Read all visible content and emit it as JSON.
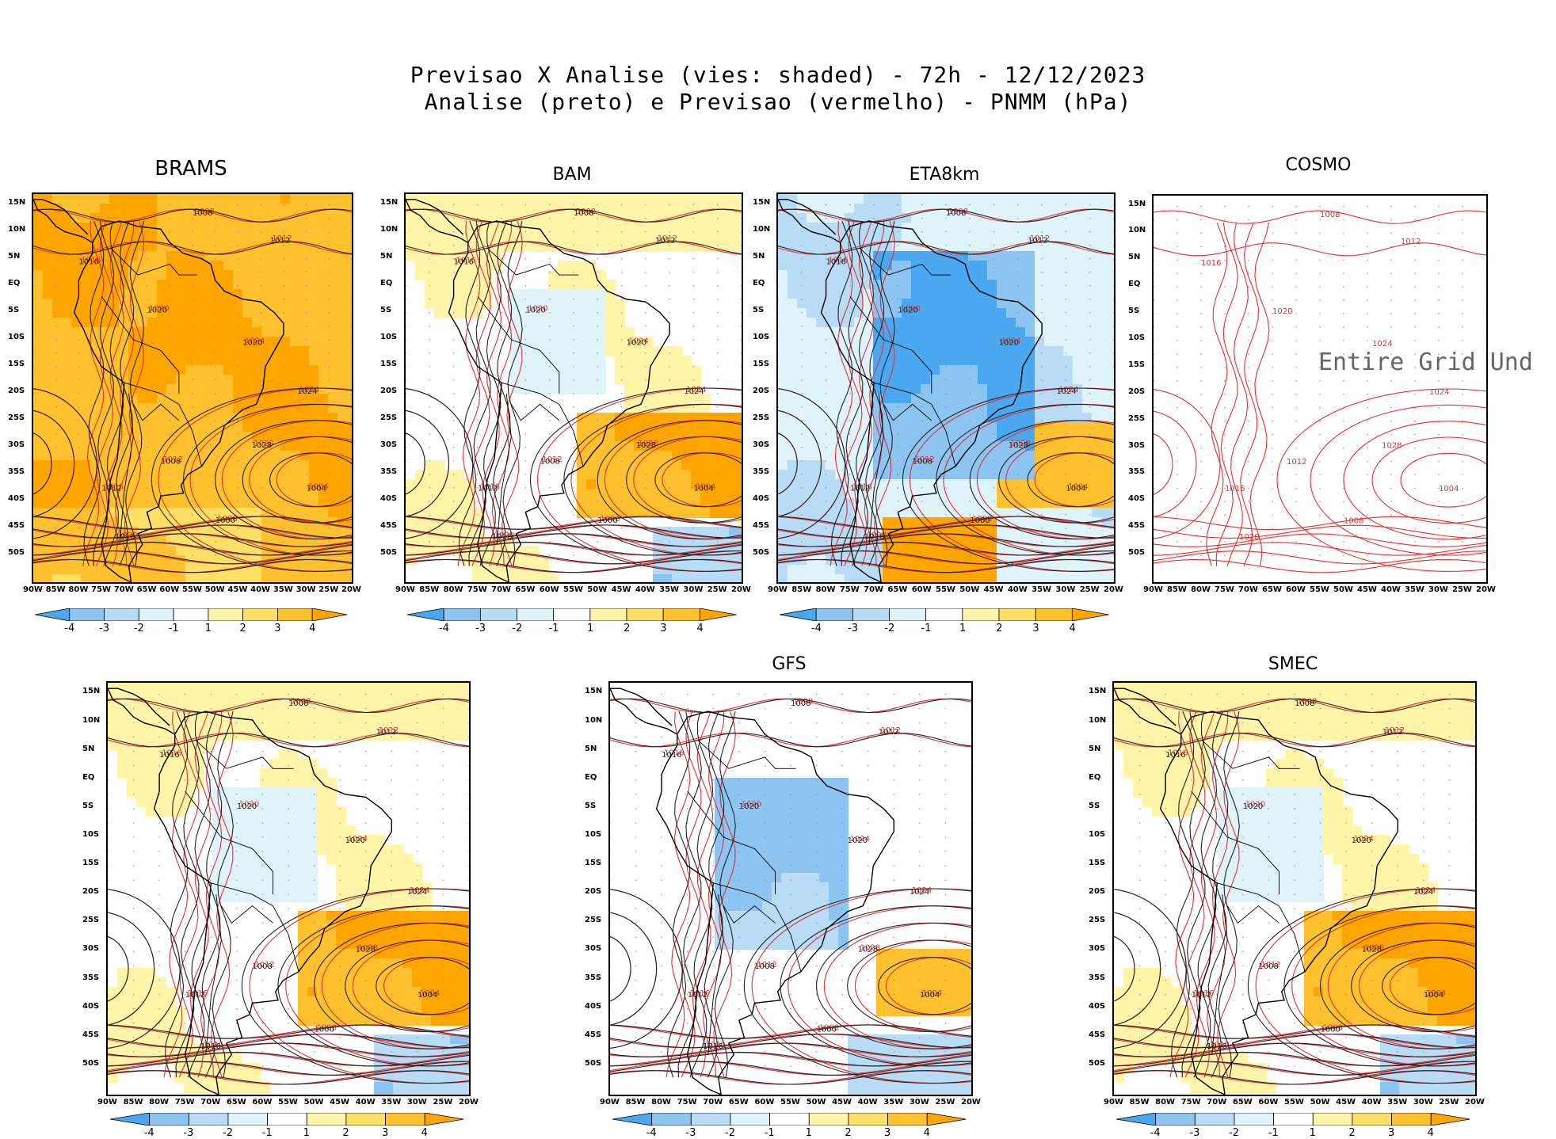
{
  "figure": {
    "title_line1": "Previsao X Analise (vies: shaded) - 72h - 12/12/2023",
    "title_line2": "Analise (preto) e Previsao (vermelho) - PNMM (hPa)"
  },
  "lat_ticks": [
    "15N",
    "10N",
    "5N",
    "EQ",
    "5S",
    "10S",
    "15S",
    "20S",
    "25S",
    "30S",
    "35S",
    "40S",
    "45S",
    "50S"
  ],
  "lon_ticks": [
    "90W",
    "85W",
    "80W",
    "75W",
    "70W",
    "65W",
    "60W",
    "55W",
    "50W",
    "45W",
    "40W",
    "35W",
    "30W",
    "25W",
    "20W"
  ],
  "colorbar_ticks": [
    "-4",
    "-3",
    "-2",
    "-1",
    "1",
    "2",
    "3",
    "4"
  ],
  "colorbar_colors": [
    "#4aa8f0",
    "#8cc4f2",
    "#b8dcf5",
    "#dff3fb",
    "#ffffff",
    "#fff4a8",
    "#ffe066",
    "#ffc12e",
    "#ffa500"
  ],
  "panels": [
    {
      "id": "brams",
      "title": "BRAMS",
      "bias": "warm"
    },
    {
      "id": "bam",
      "title": "BAM",
      "bias": "mixed"
    },
    {
      "id": "eta",
      "title": "ETA8km",
      "bias": "cold"
    },
    {
      "id": "cosmo",
      "title": "COSMO",
      "bias": "none",
      "message": "Entire Grid Und"
    },
    {
      "id": "ens",
      "title": "",
      "bias": "mixed"
    },
    {
      "id": "gfs",
      "title": "GFS",
      "bias": "coldish"
    },
    {
      "id": "smec",
      "title": "SMEC",
      "bias": "mixed"
    }
  ],
  "isobar_labels": {
    "black": [
      "1008",
      "1012",
      "1016",
      "1020",
      "1024",
      "1028",
      "1004",
      "1000"
    ],
    "red": [
      "1008",
      "1012",
      "1016",
      "1020",
      "1024",
      "1028",
      "1004"
    ]
  }
}
